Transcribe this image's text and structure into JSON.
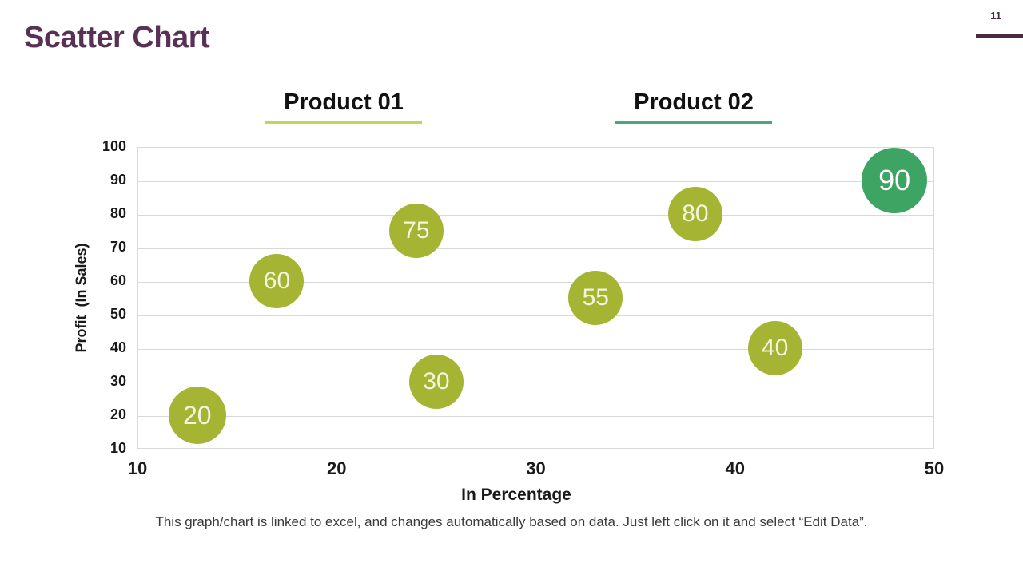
{
  "page": {
    "number": "11",
    "title": "Scatter Chart"
  },
  "caption": "This graph/chart is linked to excel, and changes automatically based on data. Just left click on it and select “Edit Data”.",
  "legend": {
    "items": [
      {
        "label": "Product 01",
        "underline_color": "#c6d15b"
      },
      {
        "label": "Product 02",
        "underline_color": "#4ba778"
      }
    ]
  },
  "chart_data": {
    "type": "scatter",
    "title": "",
    "xlabel": "In Percentage",
    "ylabel": "Profit  (In Sales)",
    "xlim": [
      10,
      50
    ],
    "ylim": [
      10,
      100
    ],
    "xticks": [
      10,
      20,
      30,
      40,
      50
    ],
    "yticks": [
      100,
      90,
      80,
      70,
      60,
      50,
      40,
      30,
      20,
      10
    ],
    "grid": "horizontal-only",
    "legend_position": "top",
    "series": [
      {
        "name": "Product 01",
        "color": "#a5b433",
        "label_color": "#f2f5df",
        "points": [
          {
            "x": 13,
            "y": 20,
            "label": "20",
            "r": 36
          },
          {
            "x": 17,
            "y": 60,
            "label": "60",
            "r": 34
          },
          {
            "x": 24,
            "y": 75,
            "label": "75",
            "r": 34
          },
          {
            "x": 25,
            "y": 30,
            "label": "30",
            "r": 34
          },
          {
            "x": 33,
            "y": 55,
            "label": "55",
            "r": 34
          },
          {
            "x": 38,
            "y": 80,
            "label": "80",
            "r": 34
          },
          {
            "x": 42,
            "y": 40,
            "label": "40",
            "r": 34
          }
        ]
      },
      {
        "name": "Product 02",
        "color": "#3ea463",
        "label_color": "#ffffff",
        "points": [
          {
            "x": 48,
            "y": 90,
            "label": "90",
            "r": 41
          }
        ]
      }
    ]
  },
  "colors": {
    "title": "#5a3156",
    "accent_bar": "#4a2b44",
    "grid": "#d9d9d9",
    "axis_text": "#1a1a1a"
  }
}
